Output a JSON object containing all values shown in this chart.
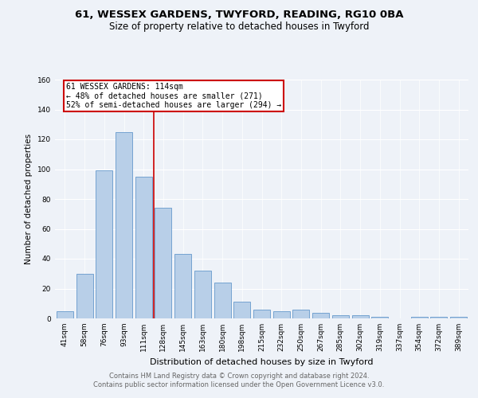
{
  "title1": "61, WESSEX GARDENS, TWYFORD, READING, RG10 0BA",
  "title2": "Size of property relative to detached houses in Twyford",
  "xlabel": "Distribution of detached houses by size in Twyford",
  "ylabel": "Number of detached properties",
  "categories": [
    "41sqm",
    "58sqm",
    "76sqm",
    "93sqm",
    "111sqm",
    "128sqm",
    "145sqm",
    "163sqm",
    "180sqm",
    "198sqm",
    "215sqm",
    "232sqm",
    "250sqm",
    "267sqm",
    "285sqm",
    "302sqm",
    "319sqm",
    "337sqm",
    "354sqm",
    "372sqm",
    "389sqm"
  ],
  "values": [
    5,
    30,
    99,
    125,
    95,
    74,
    43,
    32,
    24,
    11,
    6,
    5,
    6,
    4,
    2,
    2,
    1,
    0,
    1,
    1,
    1
  ],
  "bar_color": "#b8cfe8",
  "bar_edge_color": "#6699cc",
  "annotation_text_line1": "61 WESSEX GARDENS: 114sqm",
  "annotation_text_line2": "← 48% of detached houses are smaller (271)",
  "annotation_text_line3": "52% of semi-detached houses are larger (294) →",
  "annotation_box_color": "#ffffff",
  "annotation_border_color": "#cc0000",
  "vline_color": "#cc0000",
  "vline_x_index": 4.5,
  "footer_line1": "Contains HM Land Registry data © Crown copyright and database right 2024.",
  "footer_line2": "Contains public sector information licensed under the Open Government Licence v3.0.",
  "ylim": [
    0,
    160
  ],
  "yticks": [
    0,
    20,
    40,
    60,
    80,
    100,
    120,
    140,
    160
  ],
  "background_color": "#eef2f8",
  "grid_color": "#ffffff",
  "title1_fontsize": 9.5,
  "title2_fontsize": 8.5,
  "xlabel_fontsize": 8,
  "ylabel_fontsize": 7.5,
  "tick_fontsize": 6.5,
  "footer_fontsize": 6,
  "ann_fontsize": 7
}
